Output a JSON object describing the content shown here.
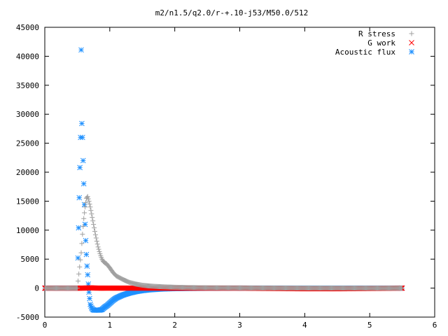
{
  "chart_data": {
    "type": "scatter",
    "title": "m2/n1.5/q2.0/r-+.10-j53/M50.0/512",
    "xlabel": "",
    "ylabel": "",
    "xlim": [
      0,
      6
    ],
    "ylim": [
      -5000,
      45000
    ],
    "x_ticks": [
      "0",
      "1",
      "2",
      "3",
      "4",
      "5",
      "6"
    ],
    "y_ticks": [
      "-5000",
      "0",
      "5000",
      "10000",
      "15000",
      "20000",
      "25000",
      "30000",
      "35000",
      "40000",
      "45000"
    ],
    "legend_position": "top-right",
    "grid": false,
    "series": [
      {
        "name": "R stress",
        "marker": "plus",
        "color": "#a0a0a0",
        "x": [
          0.0,
          0.1,
          0.2,
          0.3,
          0.4,
          0.5,
          0.56,
          0.58,
          0.6,
          0.62,
          0.64,
          0.66,
          0.68,
          0.7,
          0.72,
          0.74,
          0.76,
          0.78,
          0.8,
          0.82,
          0.84,
          0.86,
          0.88,
          0.9,
          0.92,
          0.95,
          1.0,
          1.05,
          1.1,
          1.2,
          1.3,
          1.4,
          1.5,
          1.6,
          1.7,
          1.8,
          1.9,
          2.0,
          2.2,
          2.4,
          2.6,
          2.8,
          3.0,
          3.5,
          4.0,
          4.5,
          5.0,
          5.5
        ],
        "y": [
          0,
          0,
          0,
          0,
          0,
          0,
          6100,
          9300,
          12000,
          14000,
          15500,
          15800,
          15000,
          14000,
          12800,
          11600,
          10400,
          9200,
          8100,
          7100,
          6300,
          5600,
          5000,
          4600,
          4400,
          4200,
          3500,
          2700,
          2100,
          1500,
          1000,
          700,
          500,
          380,
          300,
          240,
          190,
          150,
          100,
          70,
          50,
          40,
          30,
          20,
          10,
          10,
          0,
          0
        ]
      },
      {
        "name": "G work",
        "marker": "cross",
        "color": "#ff0000",
        "x": [
          0.0,
          0.5,
          0.6,
          0.7,
          0.8,
          0.9,
          1.0,
          1.1,
          1.2,
          1.3,
          1.4,
          1.6,
          1.8,
          2.0,
          2.5,
          3.0,
          3.5,
          4.0,
          4.5,
          5.0,
          5.5
        ],
        "y": [
          0,
          0,
          0,
          50,
          0,
          0,
          0,
          0,
          0,
          0,
          0,
          0,
          0,
          0,
          0,
          0,
          -50,
          -100,
          -100,
          -50,
          0
        ]
      },
      {
        "name": "Acoustic flux",
        "marker": "star",
        "color": "#1e90ff",
        "x": [
          0.0,
          0.1,
          0.2,
          0.3,
          0.4,
          0.5,
          0.55,
          0.56,
          0.57,
          0.58,
          0.59,
          0.6,
          0.61,
          0.62,
          0.63,
          0.64,
          0.65,
          0.66,
          0.67,
          0.68,
          0.69,
          0.7,
          0.72,
          0.74,
          0.76,
          0.78,
          0.8,
          0.84,
          0.88,
          0.92,
          0.96,
          1.0,
          1.05,
          1.1,
          1.2,
          1.3,
          1.4,
          1.5,
          1.6,
          1.8,
          2.0,
          2.5,
          3.0,
          3.5,
          4.0,
          4.5,
          5.0,
          5.5
        ],
        "y": [
          0,
          0,
          0,
          0,
          0,
          0,
          26000,
          41100,
          28400,
          26000,
          22000,
          18000,
          14400,
          11000,
          8200,
          5800,
          3800,
          2300,
          700,
          -700,
          -1800,
          -2800,
          -3400,
          -3700,
          -3800,
          -3800,
          -3800,
          -3800,
          -3700,
          -3300,
          -3000,
          -2600,
          -2100,
          -1700,
          -1200,
          -850,
          -600,
          -420,
          -300,
          -150,
          -80,
          -20,
          0,
          0,
          0,
          0,
          0,
          0
        ]
      }
    ]
  }
}
